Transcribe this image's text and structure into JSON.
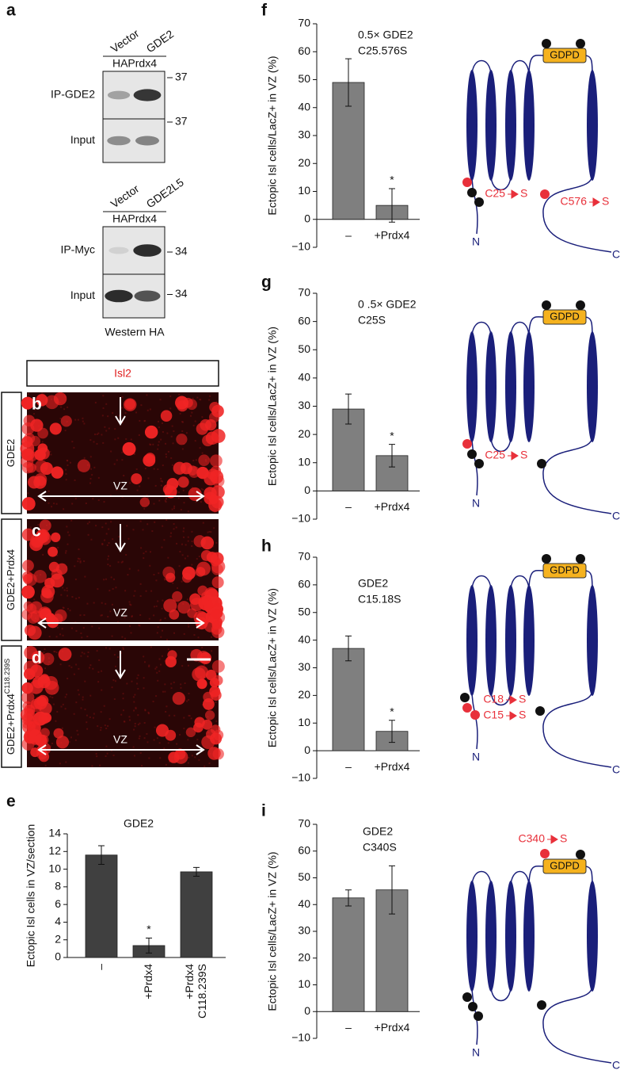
{
  "panel_a": {
    "letter": "a",
    "blots": [
      {
        "lanes": [
          "Vector",
          "GDE2"
        ],
        "bait": "HAPrdx4",
        "rows": [
          {
            "label": "IP-GDE2",
            "marker": "37"
          },
          {
            "label": "Input",
            "marker": "37"
          }
        ]
      },
      {
        "lanes": [
          "Vector",
          "GDE2L5"
        ],
        "bait": "HAPrdx4",
        "rows": [
          {
            "label": "IP-Myc",
            "marker": "34"
          },
          {
            "label": "Input",
            "marker": "34"
          }
        ],
        "footer": "Western HA"
      }
    ]
  },
  "imaging": {
    "stain": "Isl2",
    "zone": "VZ",
    "rows": [
      {
        "letter": "b",
        "condition": "GDE2"
      },
      {
        "letter": "c",
        "condition": "GDE2+Prdx4"
      },
      {
        "letter": "d",
        "condition": "GDE2+Prdx4",
        "superscript": "C118.239S"
      }
    ]
  },
  "chart_data": [
    {
      "type": "bar",
      "letter": "e",
      "title": "GDE2",
      "y_label": "Ectopic Isl cells in VZ/section",
      "color": "#404040",
      "categories": [
        "–",
        "+Prdx4",
        "+Prdx4\nC118.239S"
      ],
      "values": [
        11.6,
        1.35,
        9.7
      ],
      "errors": [
        1.05,
        0.85,
        0.5
      ],
      "significant": [
        false,
        true,
        false
      ],
      "significance_label": "*",
      "ylim": [
        0,
        14
      ],
      "yticks": [
        0,
        2,
        4,
        6,
        8,
        10,
        12,
        14
      ]
    },
    {
      "type": "bar",
      "letter": "f",
      "annotation": [
        "0.5× GDE2",
        "C25.576S"
      ],
      "y_label": "Ectopic Isl cells/LacZ+ in VZ (%)",
      "color": "#7f7f7f",
      "categories": [
        "–",
        "+Prdx4"
      ],
      "values": [
        49,
        5
      ],
      "errors": [
        8.5,
        6
      ],
      "significant": [
        false,
        true
      ],
      "significance_label": "*",
      "ylim": [
        -10,
        70
      ],
      "yticks": [
        {
          "value": -10,
          "label": "−10"
        },
        0,
        10,
        20,
        30,
        40,
        50,
        60,
        70
      ]
    },
    {
      "type": "bar",
      "letter": "g",
      "annotation": [
        "0 .5× GDE2",
        "C25S"
      ],
      "y_label": "Ectopic Isl cells/LacZ+ in VZ (%)",
      "color": "#7f7f7f",
      "categories": [
        "–",
        "+Prdx4"
      ],
      "values": [
        29,
        12.5
      ],
      "errors": [
        5.3,
        4
      ],
      "significant": [
        false,
        true
      ],
      "significance_label": "*",
      "ylim": [
        -10,
        70
      ],
      "yticks": [
        {
          "value": -10,
          "label": "−10"
        },
        0,
        10,
        20,
        30,
        40,
        50,
        60,
        70
      ]
    },
    {
      "type": "bar",
      "letter": "h",
      "annotation": [
        "GDE2",
        "C15.18S"
      ],
      "y_label": "Ectopic Isl cells/LacZ+ in VZ (%)",
      "color": "#7f7f7f",
      "categories": [
        "–",
        "+Prdx4"
      ],
      "values": [
        37,
        7
      ],
      "errors": [
        4.5,
        4
      ],
      "significant": [
        false,
        true
      ],
      "significance_label": "*",
      "ylim": [
        -10,
        70
      ],
      "yticks": [
        {
          "value": -10,
          "label": "−10"
        },
        0,
        10,
        20,
        30,
        40,
        50,
        60,
        70
      ]
    },
    {
      "type": "bar",
      "letter": "i",
      "annotation": [
        "GDE2",
        "C340S"
      ],
      "y_label": "Ectopic Isl cells/LacZ+ in VZ (%)",
      "color": "#7f7f7f",
      "categories": [
        "–",
        "+Prdx4"
      ],
      "values": [
        42.5,
        45.5
      ],
      "errors": [
        3,
        9
      ],
      "significant": [
        false,
        false
      ],
      "ylim": [
        -10,
        70
      ],
      "yticks": [
        {
          "value": -10,
          "label": "−10"
        },
        0,
        10,
        20,
        30,
        40,
        50,
        60,
        70
      ]
    }
  ],
  "diagrams": [
    {
      "domain": "GDPD",
      "n_label": "N",
      "c_label": "C",
      "mutations": [
        {
          "from": "C25",
          "to": "S"
        },
        {
          "from": "C576",
          "to": "S"
        }
      ]
    },
    {
      "domain": "GDPD",
      "n_label": "N",
      "c_label": "C",
      "mutations": [
        {
          "from": "C25",
          "to": "S"
        }
      ]
    },
    {
      "domain": "GDPD",
      "n_label": "N",
      "c_label": "C",
      "mutations": [
        {
          "from": "C18",
          "to": "S"
        },
        {
          "from": "C15",
          "to": "S"
        }
      ]
    },
    {
      "domain": "GDPD",
      "n_label": "N",
      "c_label": "C",
      "mutations": [
        {
          "from": "C340",
          "to": "S"
        }
      ]
    }
  ]
}
